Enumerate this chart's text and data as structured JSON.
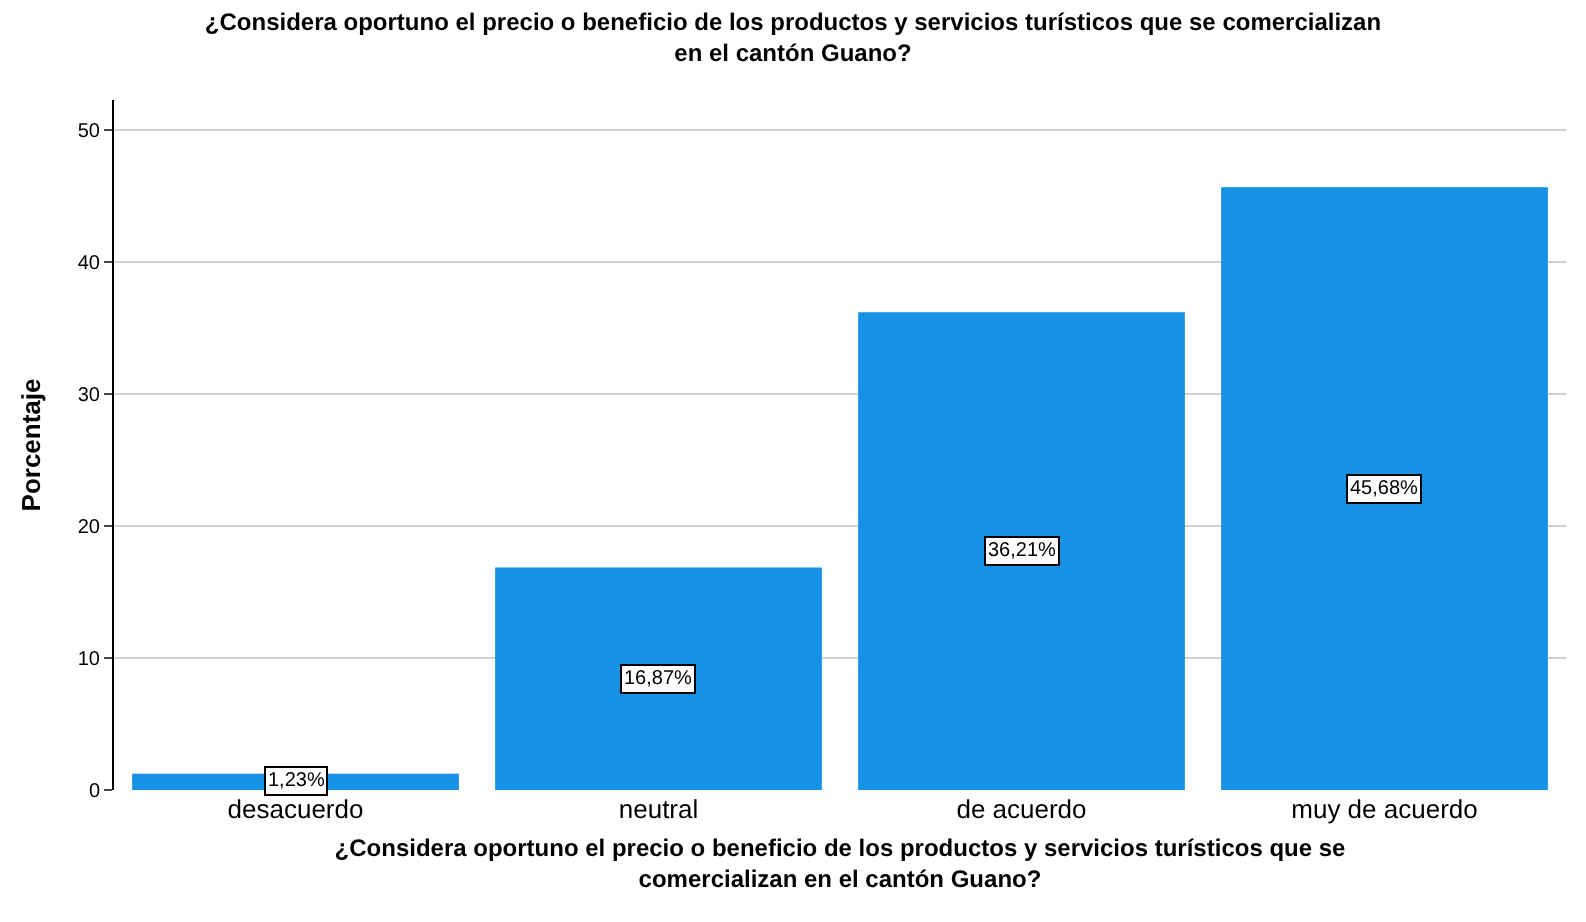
{
  "chart_data": {
    "type": "bar",
    "title": "¿Considera oportuno el precio o beneficio de los productos y servicios turísticos que se comercializan en el cantón Guano?",
    "xlabel": "¿Considera oportuno el precio o beneficio de los productos y servicios turísticos que se comercializan en el cantón Guano?",
    "ylabel": "Porcentaje",
    "categories": [
      "desacuerdo",
      "neutral",
      "de acuerdo",
      "muy de acuerdo"
    ],
    "values": [
      1.23,
      16.87,
      36.21,
      45.68
    ],
    "value_labels": [
      "1,23%",
      "16,87%",
      "36,21%",
      "45,68%"
    ],
    "color": "#1591e6",
    "ylim": [
      0,
      52.3
    ],
    "yticks": [
      0,
      10,
      20,
      30,
      40,
      50
    ],
    "grid": "y",
    "legend": false
  }
}
